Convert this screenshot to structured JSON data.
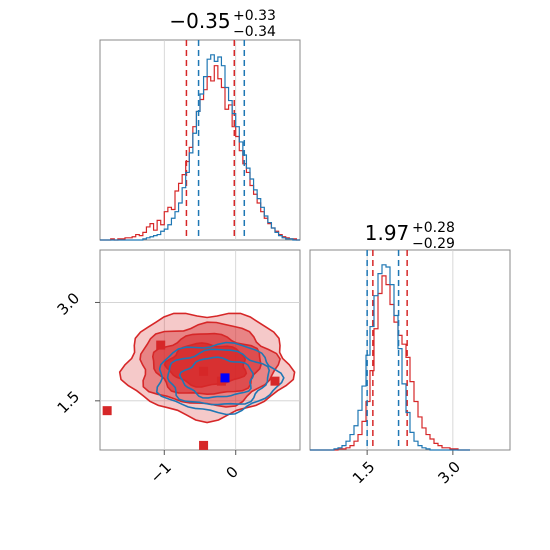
{
  "chart_data": [
    {
      "type": "histogram",
      "panel": "marginal-param-1",
      "title": {
        "main": "−0.35",
        "sup": "+0.33",
        "sub": "−0.34"
      },
      "xlim": [
        -1.9,
        0.9
      ],
      "grid": true,
      "series": [
        {
          "color": "#d62728",
          "quantile_lines": [
            -0.69,
            -0.02
          ],
          "bin_width": 0.05,
          "x": [
            -1.9,
            -1.85,
            -1.8,
            -1.75,
            -1.7,
            -1.65,
            -1.6,
            -1.55,
            -1.5,
            -1.45,
            -1.4,
            -1.35,
            -1.3,
            -1.25,
            -1.2,
            -1.15,
            -1.1,
            -1.05,
            -1.0,
            -0.95,
            -0.9,
            -0.85,
            -0.8,
            -0.75,
            -0.7,
            -0.65,
            -0.6,
            -0.55,
            -0.5,
            -0.45,
            -0.4,
            -0.35,
            -0.3,
            -0.25,
            -0.2,
            -0.15,
            -0.1,
            -0.05,
            0.0,
            0.05,
            0.1,
            0.15,
            0.2,
            0.25,
            0.3,
            0.35,
            0.4,
            0.45,
            0.5,
            0.55,
            0.6,
            0.65,
            0.7,
            0.75,
            0.8,
            0.85
          ],
          "counts": [
            0,
            0,
            0,
            1,
            0,
            1,
            1,
            2,
            2,
            3,
            5,
            4,
            7,
            12,
            15,
            9,
            18,
            14,
            26,
            30,
            28,
            45,
            52,
            60,
            72,
            85,
            104,
            118,
            129,
            138,
            150,
            146,
            160,
            148,
            140,
            120,
            124,
            104,
            95,
            82,
            70,
            62,
            50,
            42,
            34,
            26,
            20,
            15,
            11,
            8,
            5,
            3,
            2,
            1,
            1,
            0
          ]
        },
        {
          "color": "#1f77b4",
          "quantile_lines": [
            -0.52,
            0.12
          ],
          "bin_width": 0.05,
          "x": [
            -1.9,
            -1.85,
            -1.8,
            -1.75,
            -1.7,
            -1.65,
            -1.6,
            -1.55,
            -1.5,
            -1.45,
            -1.4,
            -1.35,
            -1.3,
            -1.25,
            -1.2,
            -1.15,
            -1.1,
            -1.05,
            -1.0,
            -0.95,
            -0.9,
            -0.85,
            -0.8,
            -0.75,
            -0.7,
            -0.65,
            -0.6,
            -0.55,
            -0.5,
            -0.45,
            -0.4,
            -0.35,
            -0.3,
            -0.25,
            -0.2,
            -0.15,
            -0.1,
            -0.05,
            0.0,
            0.05,
            0.1,
            0.15,
            0.2,
            0.25,
            0.3,
            0.35,
            0.4,
            0.45,
            0.5,
            0.55,
            0.6,
            0.65,
            0.7,
            0.75,
            0.8,
            0.85
          ],
          "counts": [
            0,
            0,
            0,
            0,
            0,
            0,
            0,
            0,
            0,
            0,
            0,
            0,
            1,
            2,
            3,
            4,
            5,
            8,
            10,
            14,
            20,
            26,
            34,
            48,
            62,
            80,
            98,
            118,
            134,
            150,
            166,
            170,
            164,
            168,
            160,
            140,
            128,
            116,
            104,
            90,
            78,
            66,
            56,
            46,
            38,
            30,
            22,
            16,
            11,
            7,
            4,
            2,
            1,
            1,
            0,
            0
          ]
        }
      ]
    },
    {
      "type": "histogram",
      "panel": "marginal-param-2",
      "title": {
        "main": "1.97",
        "sup": "+0.28",
        "sub": "−0.29"
      },
      "xlim": [
        0.5,
        4.0
      ],
      "x_tick_labels": [
        "1.5",
        "3.0"
      ],
      "x_ticks": [
        1.5,
        3.0
      ],
      "grid": true,
      "series": [
        {
          "color": "#d62728",
          "quantile_lines": [
            1.6,
            2.2
          ],
          "bin_width": 0.07,
          "x": [
            0.5,
            0.57,
            0.64,
            0.71,
            0.78,
            0.85,
            0.92,
            0.99,
            1.06,
            1.13,
            1.2,
            1.27,
            1.34,
            1.41,
            1.48,
            1.55,
            1.62,
            1.69,
            1.76,
            1.83,
            1.9,
            1.97,
            2.04,
            2.11,
            2.18,
            2.25,
            2.32,
            2.39,
            2.46,
            2.53,
            2.6,
            2.67,
            2.74,
            2.81,
            2.88,
            2.95,
            3.02,
            3.09,
            3.16,
            3.23
          ],
          "counts": [
            0,
            0,
            0,
            0,
            0,
            0,
            0,
            1,
            1,
            2,
            4,
            8,
            14,
            26,
            44,
            72,
            110,
            142,
            158,
            150,
            132,
            116,
            104,
            96,
            84,
            62,
            44,
            30,
            20,
            14,
            10,
            6,
            4,
            2,
            2,
            1,
            1,
            0,
            0,
            0
          ]
        },
        {
          "color": "#1f77b4",
          "quantile_lines": [
            1.5,
            2.05
          ],
          "bin_width": 0.07,
          "x": [
            0.5,
            0.57,
            0.64,
            0.71,
            0.78,
            0.85,
            0.92,
            0.99,
            1.06,
            1.13,
            1.2,
            1.27,
            1.34,
            1.41,
            1.48,
            1.55,
            1.62,
            1.69,
            1.76,
            1.83,
            1.9,
            1.97,
            2.04,
            2.11,
            2.18,
            2.25,
            2.32,
            2.39,
            2.46,
            2.53,
            2.6,
            2.67,
            2.74,
            2.81,
            2.88,
            2.95,
            3.02,
            3.09,
            3.16,
            3.23
          ],
          "counts": [
            0,
            0,
            0,
            0,
            0,
            0,
            1,
            2,
            4,
            8,
            14,
            22,
            36,
            58,
            86,
            112,
            140,
            160,
            168,
            166,
            150,
            122,
            92,
            60,
            34,
            16,
            8,
            4,
            2,
            1,
            0,
            0,
            0,
            0,
            0,
            0,
            0,
            0,
            0,
            0
          ]
        }
      ]
    },
    {
      "type": "contour",
      "panel": "joint-param-1-param-2",
      "xlim": [
        -1.9,
        0.9
      ],
      "ylim": [
        0.75,
        3.8
      ],
      "x_tick_labels": [
        "−1",
        "0"
      ],
      "x_ticks": [
        -1,
        0
      ],
      "y_tick_labels": [
        "1.5",
        "3.0"
      ],
      "y_ticks": [
        1.5,
        3.0
      ],
      "grid": true,
      "contours": [
        {
          "color": "#d62728",
          "filled": true,
          "center": [
            -0.4,
            2.05
          ],
          "radii_x": [
            1.15,
            0.95,
            0.75,
            0.55
          ],
          "radii_y": [
            0.8,
            0.62,
            0.46,
            0.32
          ]
        },
        {
          "color": "#1f77b4",
          "filled": false,
          "center": [
            -0.25,
            1.85
          ],
          "radii_x": [
            0.85,
            0.7,
            0.5
          ],
          "radii_y": [
            0.52,
            0.42,
            0.3
          ]
        }
      ],
      "markers": [
        {
          "color": "#d62728",
          "x": -1.8,
          "y": 1.35
        },
        {
          "color": "#d62728",
          "x": -1.05,
          "y": 2.35
        },
        {
          "color": "#d62728",
          "x": -0.45,
          "y": 1.95
        },
        {
          "color": "#d62728",
          "x": -0.45,
          "y": 0.82
        },
        {
          "color": "#d62728",
          "x": 0.55,
          "y": 1.8
        },
        {
          "color": "#d62728",
          "x": -0.2,
          "y": 1.8
        },
        {
          "color": "#0000ff",
          "x": -0.15,
          "y": 1.85
        }
      ]
    }
  ]
}
